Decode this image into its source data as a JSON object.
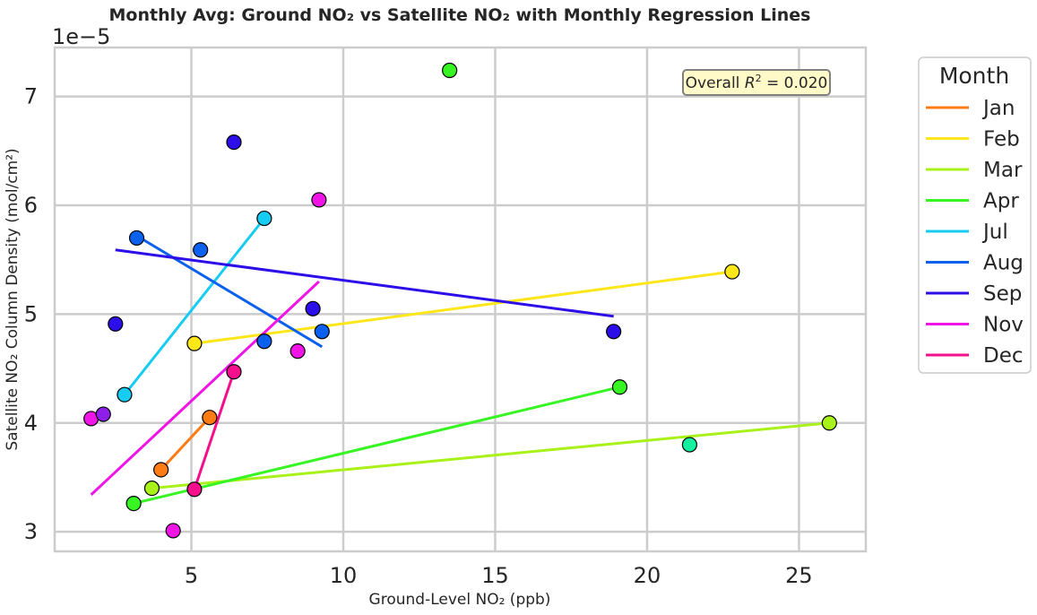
{
  "chart_data": {
    "type": "scatter",
    "title": "Monthly Avg: Ground NO₂ vs Satellite NO₂ with Monthly Regression Lines",
    "xlabel": "Ground-Level NO₂ (ppb)",
    "ylabel": "Satellite NO₂ Column Density (mol/cm²)",
    "y_offset_label": "1e−5",
    "y_scale": 1e-05,
    "xlim": [
      0.5,
      27.2
    ],
    "ylim": [
      2.82,
      7.45
    ],
    "x_ticks": [
      5,
      10,
      15,
      20,
      25
    ],
    "x_tick_labels": [
      "5",
      "10",
      "15",
      "20",
      "25"
    ],
    "y_ticks": [
      3,
      4,
      5,
      6,
      7
    ],
    "y_tick_labels": [
      "3",
      "4",
      "5",
      "6",
      "7"
    ],
    "grid": true,
    "annotation": {
      "prefix": "Overall ",
      "rsq": "R",
      "sup": "2",
      "value": " = 0.020"
    },
    "legend": {
      "title": "Month",
      "placement": "outside-right-top"
    },
    "series": [
      {
        "name": "Jan",
        "color": "#ff7b14",
        "points": [
          [
            4.0,
            3.57
          ],
          [
            5.6,
            4.05
          ]
        ],
        "line": [
          [
            4.0,
            3.57
          ],
          [
            5.6,
            4.05
          ]
        ]
      },
      {
        "name": "Feb",
        "color": "#ffe619",
        "points": [
          [
            5.1,
            4.73
          ],
          [
            22.8,
            5.39
          ]
        ],
        "line": [
          [
            5.1,
            4.73
          ],
          [
            22.8,
            5.39
          ]
        ]
      },
      {
        "name": "Mar",
        "color": "#a8f219",
        "points": [
          [
            3.7,
            3.4
          ],
          [
            26.0,
            4.0
          ]
        ],
        "line": [
          [
            3.7,
            3.4
          ],
          [
            26.0,
            4.0
          ]
        ]
      },
      {
        "name": "Apr",
        "color": "#36f522",
        "points": [
          [
            3.1,
            3.26
          ],
          [
            19.1,
            4.33
          ],
          [
            13.5,
            7.24
          ]
        ],
        "line": [
          [
            3.1,
            3.26
          ],
          [
            19.1,
            4.33
          ]
        ]
      },
      {
        "name": "Jul",
        "color": "#16ccf2",
        "points": [
          [
            2.8,
            4.26
          ],
          [
            7.4,
            5.88
          ]
        ],
        "line": [
          [
            2.8,
            4.26
          ],
          [
            7.4,
            5.88
          ]
        ]
      },
      {
        "name": "Aug",
        "color": "#0c60ee",
        "points": [
          [
            3.2,
            5.7
          ],
          [
            5.3,
            5.59
          ],
          [
            7.4,
            4.75
          ],
          [
            9.3,
            4.84
          ]
        ],
        "line": [
          [
            3.2,
            5.72
          ],
          [
            9.3,
            4.7
          ]
        ]
      },
      {
        "name": "Sep",
        "color": "#2b0ee8",
        "points": [
          [
            2.5,
            4.91
          ],
          [
            6.4,
            6.58
          ],
          [
            9.0,
            5.05
          ],
          [
            18.9,
            4.84
          ]
        ],
        "line": [
          [
            2.5,
            5.59
          ],
          [
            18.9,
            4.98
          ]
        ]
      },
      {
        "name": "Nov",
        "color": "#f014e6",
        "points": [
          [
            1.7,
            4.04
          ],
          [
            4.4,
            3.01
          ],
          [
            8.5,
            4.66
          ],
          [
            9.2,
            6.05
          ]
        ],
        "line": [
          [
            1.7,
            3.34
          ],
          [
            9.2,
            5.3
          ]
        ]
      },
      {
        "name": "Dec",
        "color": "#f50f8c",
        "points": [
          [
            5.1,
            3.39
          ],
          [
            6.4,
            4.47
          ]
        ],
        "line": [
          [
            5.1,
            3.39
          ],
          [
            6.4,
            4.47
          ]
        ]
      }
    ],
    "extra_points": [
      {
        "color": "#8d1fe8",
        "x": 2.1,
        "y": 4.08
      },
      {
        "color": "#14f2a0",
        "x": 21.4,
        "y": 3.8
      }
    ]
  }
}
